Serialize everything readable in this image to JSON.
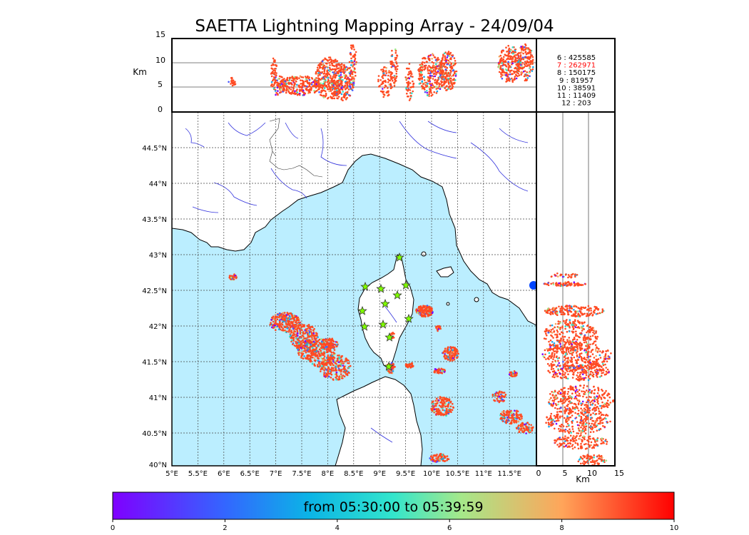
{
  "title": "SAETTA Lightning Mapping Array - 24/09/04",
  "top_panel": {
    "ylabel": "Km",
    "yticks": [
      "0",
      "5",
      "10",
      "15"
    ]
  },
  "right_panel": {
    "xlabel": "Km",
    "xticks": [
      "0",
      "5",
      "10",
      "15"
    ]
  },
  "station_counts": [
    {
      "label": "6 :   425585",
      "color": "#000000"
    },
    {
      "label": "7 :   262971",
      "color": "#ff0000"
    },
    {
      "label": "8 :   150175",
      "color": "#000000"
    },
    {
      "label": "9 :    81957",
      "color": "#000000"
    },
    {
      "label": "10 :    38591",
      "color": "#000000"
    },
    {
      "label": "11 :    11409",
      "color": "#000000"
    },
    {
      "label": "12 :      203",
      "color": "#000000"
    }
  ],
  "map": {
    "lat_labels": [
      "44.5°N",
      "44°N",
      "43.5°N",
      "43°N",
      "42.5°N",
      "42°N",
      "41.5°N",
      "41°N",
      "40.5°N",
      "40°N"
    ],
    "lon_labels": [
      "5°E",
      "5.5°E",
      "6°E",
      "6.5°E",
      "7°E",
      "7.5°E",
      "8°E",
      "8.5°E",
      "9°E",
      "9.5°E",
      "10°E",
      "10.5°E",
      "11°E",
      "11.5°E"
    ],
    "sea_color": "#bbeeff",
    "land_color": "#ffffff",
    "station_color": "#7fff00"
  },
  "colorbar": {
    "label": "from 05:30:00 to 05:39:59",
    "ticks": [
      "0",
      "2",
      "4",
      "6",
      "8",
      "10"
    ],
    "colormap": "rainbow"
  }
}
